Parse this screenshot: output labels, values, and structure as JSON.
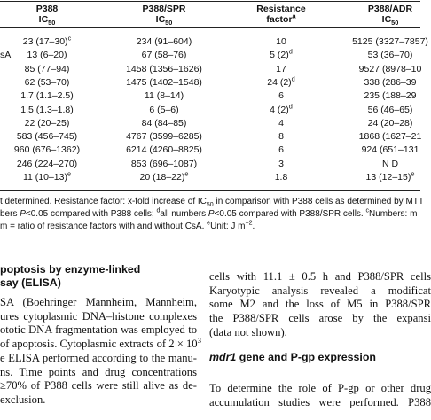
{
  "table": {
    "header": [
      {
        "top": "P388",
        "bottom": [
          {
            "t": "IC"
          },
          {
            "t": "50",
            "s": "sub"
          }
        ]
      },
      {
        "top": "P388/SPR",
        "bottom": [
          {
            "t": "IC"
          },
          {
            "t": "50",
            "s": "sub"
          }
        ]
      },
      {
        "top": "Resistance",
        "bottom": [
          {
            "t": "factor"
          },
          {
            "t": "a",
            "s": "sup"
          }
        ]
      },
      {
        "top": "P388/ADR",
        "bottom": [
          {
            "t": "IC"
          },
          {
            "t": "50",
            "s": "sub"
          }
        ]
      }
    ],
    "rows": [
      {
        "cells": [
          [
            {
              "t": "23 (17–30)"
            },
            {
              "t": "c",
              "s": "sup"
            }
          ],
          [
            {
              "t": "234 (91–604)"
            }
          ],
          [
            {
              "t": "10"
            }
          ],
          [
            {
              "t": "5125 (3327–7857)"
            }
          ]
        ]
      },
      {
        "label": "sA",
        "cells": [
          [
            {
              "t": "13 (6–20)"
            }
          ],
          [
            {
              "t": "67 (58–76)"
            }
          ],
          [
            {
              "t": "5 (2)"
            },
            {
              "t": "d",
              "s": "sup"
            }
          ],
          [
            {
              "t": "53 (36–70)"
            }
          ]
        ]
      },
      {
        "cells": [
          [
            {
              "t": "85 (77–94)"
            }
          ],
          [
            {
              "t": "1458 (1356–1626)"
            }
          ],
          [
            {
              "t": "17"
            }
          ],
          [
            {
              "t": "9527 (8978–10"
            }
          ]
        ]
      },
      {
        "cells": [
          [
            {
              "t": "62 (53–70)"
            }
          ],
          [
            {
              "t": "1475 (1402–1548)"
            }
          ],
          [
            {
              "t": "24 (2)"
            },
            {
              "t": "d",
              "s": "sup"
            }
          ],
          [
            {
              "t": "338 (286–39"
            }
          ]
        ]
      },
      {
        "cells": [
          [
            {
              "t": "1.7 (1.1–2.5)"
            }
          ],
          [
            {
              "t": "11 (8–14)"
            }
          ],
          [
            {
              "t": "6"
            }
          ],
          [
            {
              "t": "235 (188–29"
            }
          ]
        ]
      },
      {
        "cells": [
          [
            {
              "t": "1.5 (1.3–1.8)"
            }
          ],
          [
            {
              "t": "6 (5–6)"
            }
          ],
          [
            {
              "t": "4 (2)"
            },
            {
              "t": "d",
              "s": "sup"
            }
          ],
          [
            {
              "t": "56 (46–65)"
            }
          ]
        ]
      },
      {
        "cells": [
          [
            {
              "t": "22 (20–25)"
            }
          ],
          [
            {
              "t": "84 (84–85)"
            }
          ],
          [
            {
              "t": "4"
            }
          ],
          [
            {
              "t": "24 (20–28)"
            }
          ]
        ]
      },
      {
        "cells": [
          [
            {
              "t": "583 (456–745)"
            }
          ],
          [
            {
              "t": "4767 (3599–6285)"
            }
          ],
          [
            {
              "t": "8"
            }
          ],
          [
            {
              "t": "1868 (1627–21"
            }
          ]
        ]
      },
      {
        "cells": [
          [
            {
              "t": "960 (676–1362)"
            }
          ],
          [
            {
              "t": "6214 (4260–8825)"
            }
          ],
          [
            {
              "t": "6"
            }
          ],
          [
            {
              "t": "924 (651–131"
            }
          ]
        ]
      },
      {
        "cells": [
          [
            {
              "t": "246 (224–270)"
            }
          ],
          [
            {
              "t": "853 (696–1087)"
            }
          ],
          [
            {
              "t": "3"
            }
          ],
          [
            {
              "t": "N D"
            }
          ]
        ]
      },
      {
        "cells": [
          [
            {
              "t": "11 (10–13)"
            },
            {
              "t": "e",
              "s": "sup"
            }
          ],
          [
            {
              "t": "20 (18–22)"
            },
            {
              "t": "e",
              "s": "sup"
            }
          ],
          [
            {
              "t": "1.8"
            }
          ],
          [
            {
              "t": "13 (12–15)"
            },
            {
              "t": "e",
              "s": "sup"
            }
          ]
        ]
      }
    ]
  },
  "footnotes": [
    [
      {
        "t": "t determined. Resistance factor: x-fold increase of IC"
      },
      {
        "t": "50",
        "s": "sub"
      },
      {
        "t": " in comparison with P388 cells as determined by MTT"
      }
    ],
    [
      {
        "t": "bers "
      },
      {
        "t": "P",
        "s": "i"
      },
      {
        "t": "<0.05 compared with P388 cells; "
      },
      {
        "t": "d",
        "s": "sup"
      },
      {
        "t": "all numbers "
      },
      {
        "t": "P",
        "s": "i"
      },
      {
        "t": "<0.05 compared with P388/SPR cells. "
      },
      {
        "t": "c",
        "s": "sup"
      },
      {
        "t": "Numbers: m"
      }
    ],
    [
      {
        "t": "m = ratio of resistance factors with and without CsA. "
      },
      {
        "t": "e",
        "s": "sup"
      },
      {
        "t": "Unit: J m"
      },
      {
        "t": "−2",
        "s": "sup"
      },
      {
        "t": "."
      }
    ]
  ],
  "left_column": {
    "heading": [
      "poptosis by enzyme-linked",
      "say (ELISA)"
    ],
    "lines": [
      [
        {
          "t": "SA (Boehringer Mannheim, Mannheim,"
        }
      ],
      [
        {
          "t": "ures cytoplasmic DNA–histone complexes"
        }
      ],
      [
        {
          "t": "ototic DNA fragmentation was employed to"
        }
      ],
      [
        {
          "t": "of apoptosis. Cytoplasmic extracts of 2 × 10"
        },
        {
          "t": "3",
          "s": "sup"
        }
      ],
      [
        {
          "t": "e ELISA performed according to the manu-"
        }
      ],
      [
        {
          "t": "ns. Time points and drug concentrations"
        }
      ],
      [
        {
          "t": "≥70% of P388 cells were still alive as de-"
        }
      ],
      [
        {
          "t": "exclusion."
        }
      ]
    ]
  },
  "right_column": {
    "lines_top": [
      [
        {
          "t": "cells with 11.1 ± 0.5 h and P388/SPR cells"
        }
      ],
      [
        {
          "t": "Karyotypic analysis revealed a modificat"
        }
      ],
      [
        {
          "t": "some M2 and the loss of M5 in P388/SPR"
        }
      ],
      [
        {
          "t": "the P388/SPR cells arose by the expansi"
        }
      ],
      [
        {
          "t": "(data not shown)."
        }
      ]
    ],
    "heading": [
      {
        "t": "mdr1",
        "s": "i"
      },
      {
        "t": " gene and P-gp expression"
      }
    ],
    "lines_bottom": [
      [
        {
          "t": "To determine the role of P-gp or other drug"
        }
      ],
      [
        {
          "t": "accumulation studies were performed. P388"
        }
      ]
    ]
  }
}
